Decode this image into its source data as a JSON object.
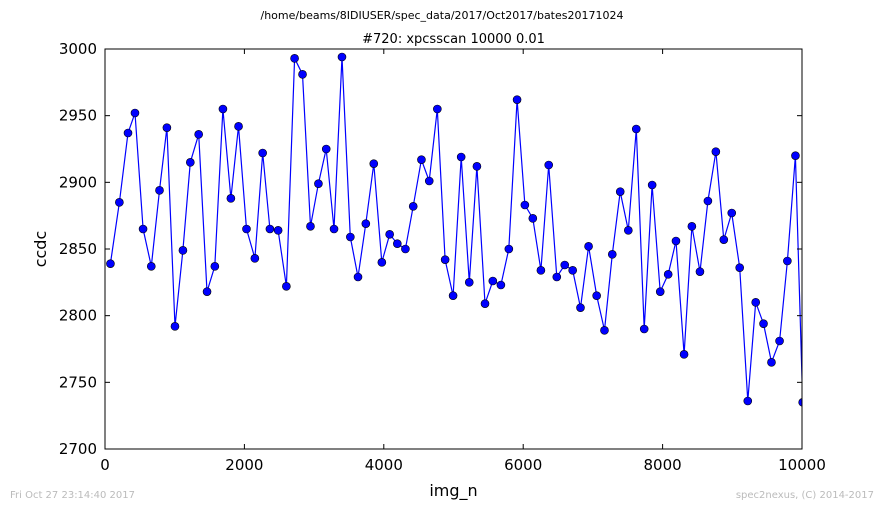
{
  "chart_data": {
    "type": "line",
    "suptitle": "/home/beams/8IDIUSER/spec_data/2017/Oct2017/bates20171024",
    "title": "#720: xpcsscan 10000 0.01",
    "xlabel": "img_n",
    "ylabel": "ccdc",
    "xlim": [
      0,
      10000
    ],
    "ylim": [
      2700,
      3000
    ],
    "xticks": [
      0,
      2000,
      4000,
      6000,
      8000,
      10000
    ],
    "yticks": [
      2700,
      2750,
      2800,
      2850,
      2900,
      2950,
      3000
    ],
    "grid": false,
    "legend": "none",
    "series": [
      {
        "color": "#0000ff",
        "marker": "circle",
        "x": [
          78,
          206,
          330,
          430,
          546,
          664,
          782,
          888,
          1004,
          1118,
          1224,
          1344,
          1464,
          1576,
          1692,
          1806,
          1916,
          2030,
          2150,
          2262,
          2366,
          2484,
          2602,
          2720,
          2834,
          2948,
          3062,
          3174,
          3286,
          3400,
          3520,
          3630,
          3742,
          3856,
          3972,
          4084,
          4194,
          4310,
          4422,
          4540,
          4652,
          4768,
          4880,
          4994,
          5110,
          5226,
          5336,
          5452,
          5564,
          5680,
          5794,
          5912,
          6024,
          6138,
          6254,
          6366,
          6482,
          6596,
          6710,
          6822,
          6938,
          7054,
          7166,
          7278,
          7392,
          7508,
          7622,
          7736,
          7850,
          7966,
          8080,
          8192,
          8308,
          8420,
          8536,
          8650,
          8764,
          8878,
          8992,
          9106,
          9222,
          9336,
          9448,
          9562,
          9678,
          9790,
          9906,
          10010
        ],
        "values": [
          2839,
          2885,
          2937,
          2952,
          2865,
          2837,
          2894,
          2941,
          2792,
          2849,
          2915,
          2936,
          2818,
          2837,
          2955,
          2888,
          2942,
          2865,
          2843,
          2922,
          2865,
          2864,
          2822,
          2993,
          2981,
          2867,
          2899,
          2925,
          2865,
          2994,
          2859,
          2829,
          2869,
          2914,
          2840,
          2861,
          2854,
          2850,
          2882,
          2917,
          2901,
          2955,
          2842,
          2815,
          2919,
          2825,
          2912,
          2809,
          2826,
          2823,
          2850,
          2962,
          2883,
          2873,
          2834,
          2913,
          2829,
          2838,
          2834,
          2806,
          2852,
          2815,
          2789,
          2846,
          2893,
          2864,
          2940,
          2790,
          2898,
          2818,
          2831,
          2856,
          2771,
          2867,
          2833,
          2886,
          2923,
          2857,
          2877,
          2836,
          2736,
          2810,
          2794,
          2765,
          2781,
          2841,
          2920,
          2735
        ]
      }
    ]
  },
  "footer": {
    "timestamp": "Fri Oct 27 23:14:40 2017",
    "credit": "spec2nexus, (C) 2014-2017"
  }
}
